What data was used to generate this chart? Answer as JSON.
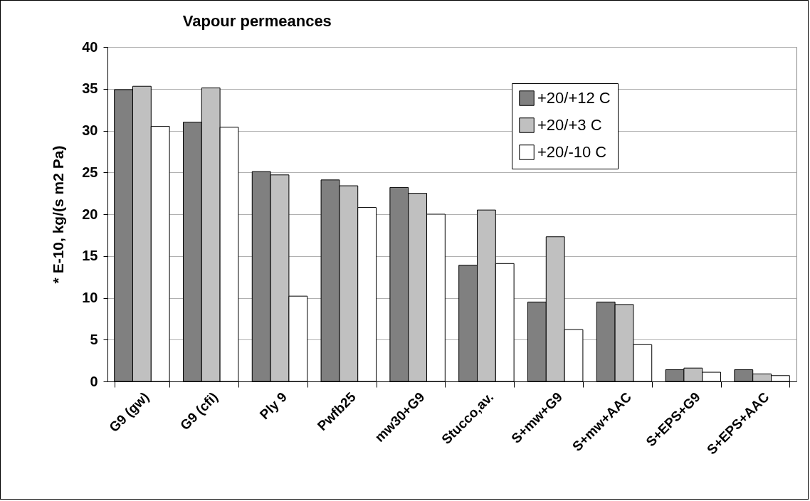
{
  "chart_data": {
    "type": "bar",
    "title": "Vapour permeances",
    "ylabel": "* E-10,   kg/(s m2 Pa)",
    "categories": [
      "G9 (gw)",
      "G9 (cfi)",
      "Ply 9",
      "Pwfb25",
      "mw30+G9",
      "Stucco,av.",
      "S+mw+G9",
      "S+mw+AAC",
      "S+EPS+G9",
      "S+EPS+AAC"
    ],
    "series": [
      {
        "name": "+20/+12 C",
        "color": "#808080",
        "values": [
          34.9,
          31.0,
          25.1,
          24.1,
          23.2,
          13.9,
          9.5,
          9.5,
          1.4,
          1.4
        ]
      },
      {
        "name": "+20/+3 C",
        "color": "#c0c0c0",
        "values": [
          35.3,
          35.1,
          24.7,
          23.4,
          22.5,
          20.5,
          17.3,
          9.2,
          1.6,
          0.9
        ]
      },
      {
        "name": "+20/-10 C",
        "color": "#ffffff",
        "values": [
          30.5,
          30.4,
          10.2,
          20.8,
          20.0,
          14.1,
          6.2,
          4.4,
          1.1,
          0.7
        ]
      }
    ],
    "ylim": [
      0,
      40
    ],
    "yticks": [
      0,
      5,
      10,
      15,
      20,
      25,
      30,
      35,
      40
    ],
    "grid": true,
    "legend": "top right"
  }
}
